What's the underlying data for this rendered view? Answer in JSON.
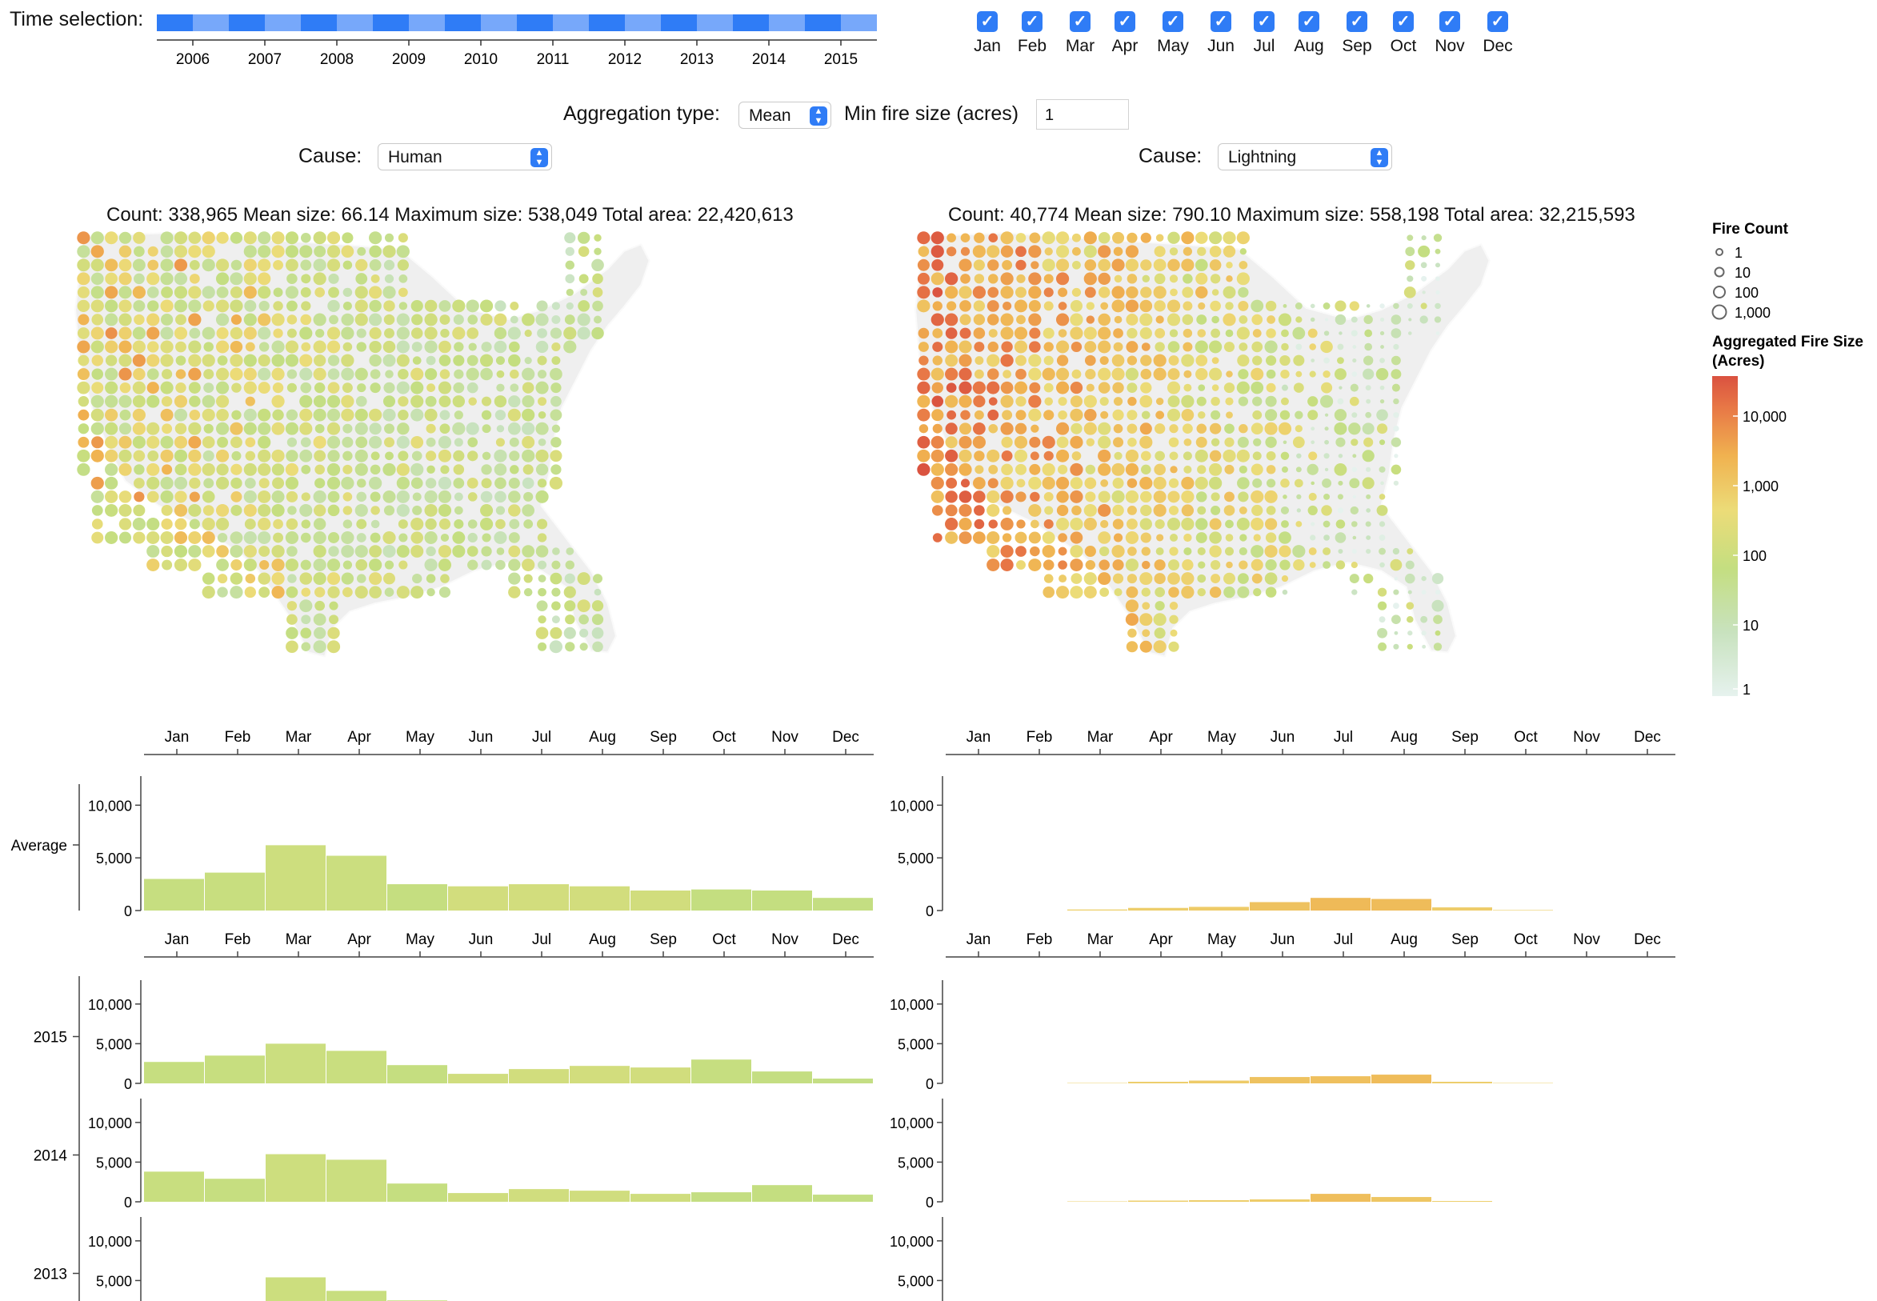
{
  "time_selection": {
    "title": "Time selection:",
    "years": [
      "2006",
      "2007",
      "2008",
      "2009",
      "2010",
      "2011",
      "2012",
      "2013",
      "2014",
      "2015"
    ],
    "colors": [
      "#2f7cf6",
      "#77a8fa"
    ]
  },
  "months": [
    "Jan",
    "Feb",
    "Mar",
    "Apr",
    "May",
    "Jun",
    "Jul",
    "Aug",
    "Sep",
    "Oct",
    "Nov",
    "Dec"
  ],
  "month_checks": {
    "checked": [
      true,
      true,
      true,
      true,
      true,
      true,
      true,
      true,
      true,
      true,
      true,
      true
    ],
    "check_icon": "checkmark-icon"
  },
  "controls": {
    "aggregation_label": "Aggregation type:",
    "aggregation_value": "Mean",
    "min_size_label": "Min fire size (acres)",
    "min_size_value": "1"
  },
  "panels": {
    "left": {
      "cause_label": "Cause:",
      "cause_value": "Human",
      "stats": "Count: 338,965  Mean size: 66.14  Maximum size: 538,049  Total area: 22,420,613"
    },
    "right": {
      "cause_label": "Cause:",
      "cause_value": "Lightning",
      "stats": "Count: 40,774  Mean size: 790.10  Maximum size: 558,198  Total area: 32,215,593"
    }
  },
  "legend": {
    "count_title": "Fire Count",
    "count_items": [
      "1",
      "10",
      "100",
      "1,000"
    ],
    "size_title_1": "Aggregated Fire Size",
    "size_title_2": "(Acres)",
    "size_ticks": [
      "10,000",
      "1,000",
      "100",
      "10",
      "1"
    ]
  },
  "chart_data": [
    {
      "type": "bar",
      "panel": "Human",
      "row": "Average",
      "categories": [
        "Jan",
        "Feb",
        "Mar",
        "Apr",
        "May",
        "Jun",
        "Jul",
        "Aug",
        "Sep",
        "Oct",
        "Nov",
        "Dec"
      ],
      "values": [
        3000,
        3600,
        6200,
        5200,
        2500,
        2300,
        2500,
        2300,
        1900,
        2000,
        1900,
        1200
      ],
      "ylim": [
        0,
        12000
      ],
      "yticks": [
        "10,000",
        "5,000",
        "0"
      ]
    },
    {
      "type": "bar",
      "panel": "Lightning",
      "row": "Average",
      "categories": [
        "Jan",
        "Feb",
        "Mar",
        "Apr",
        "May",
        "Jun",
        "Jul",
        "Aug",
        "Sep",
        "Oct",
        "Nov",
        "Dec"
      ],
      "values": [
        0,
        0,
        100,
        250,
        350,
        800,
        1200,
        1100,
        300,
        50,
        0,
        0
      ],
      "ylim": [
        0,
        12000
      ],
      "yticks": [
        "10,000",
        "5,000",
        "0"
      ]
    },
    {
      "type": "bar",
      "panel": "Human",
      "row": "2015",
      "categories": [
        "Jan",
        "Feb",
        "Mar",
        "Apr",
        "May",
        "Jun",
        "Jul",
        "Aug",
        "Sep",
        "Oct",
        "Nov",
        "Dec"
      ],
      "values": [
        2700,
        3500,
        5000,
        4100,
        2300,
        1200,
        1800,
        2200,
        2000,
        3000,
        1500,
        600
      ],
      "ylim": [
        0,
        12000
      ],
      "yticks": [
        "10,000",
        "5,000",
        "0"
      ]
    },
    {
      "type": "bar",
      "panel": "Lightning",
      "row": "2015",
      "categories": [
        "Jan",
        "Feb",
        "Mar",
        "Apr",
        "May",
        "Jun",
        "Jul",
        "Aug",
        "Sep",
        "Oct",
        "Nov",
        "Dec"
      ],
      "values": [
        0,
        0,
        50,
        200,
        350,
        800,
        900,
        1100,
        200,
        50,
        0,
        0
      ],
      "ylim": [
        0,
        12000
      ],
      "yticks": [
        "10,000",
        "5,000",
        "0"
      ]
    },
    {
      "type": "bar",
      "panel": "Human",
      "row": "2014",
      "categories": [
        "Jan",
        "Feb",
        "Mar",
        "Apr",
        "May",
        "Jun",
        "Jul",
        "Aug",
        "Sep",
        "Oct",
        "Nov",
        "Dec"
      ],
      "values": [
        3800,
        2900,
        6000,
        5300,
        2300,
        1100,
        1600,
        1400,
        1000,
        1200,
        2100,
        900
      ],
      "ylim": [
        0,
        12000
      ],
      "yticks": [
        "10,000",
        "5,000",
        "0"
      ]
    },
    {
      "type": "bar",
      "panel": "Lightning",
      "row": "2014",
      "categories": [
        "Jan",
        "Feb",
        "Mar",
        "Apr",
        "May",
        "Jun",
        "Jul",
        "Aug",
        "Sep",
        "Oct",
        "Nov",
        "Dec"
      ],
      "values": [
        0,
        0,
        50,
        150,
        200,
        300,
        1000,
        600,
        100,
        0,
        0,
        0
      ],
      "ylim": [
        0,
        12000
      ],
      "yticks": [
        "10,000",
        "5,000",
        "0"
      ]
    },
    {
      "type": "bar",
      "panel": "Human",
      "row": "2013",
      "categories": [
        "Jan",
        "Feb",
        "Mar",
        "Apr",
        "May",
        "Jun",
        "Jul",
        "Aug",
        "Sep",
        "Oct",
        "Nov",
        "Dec"
      ],
      "values": [
        0,
        0,
        5400,
        3700,
        2500,
        0,
        0,
        0,
        0,
        0,
        0,
        0
      ],
      "ylim": [
        0,
        12000
      ],
      "yticks": [
        "10,000",
        "5,000"
      ]
    },
    {
      "type": "bar",
      "panel": "Lightning",
      "row": "2013",
      "categories": [
        "Jan",
        "Feb",
        "Mar",
        "Apr",
        "May",
        "Jun",
        "Jul",
        "Aug",
        "Sep",
        "Oct",
        "Nov",
        "Dec"
      ],
      "values": [
        0,
        0,
        0,
        0,
        0,
        0,
        0,
        0,
        0,
        0,
        0,
        0
      ],
      "ylim": [
        0,
        12000
      ],
      "yticks": [
        "10,000",
        "5,000"
      ]
    }
  ]
}
